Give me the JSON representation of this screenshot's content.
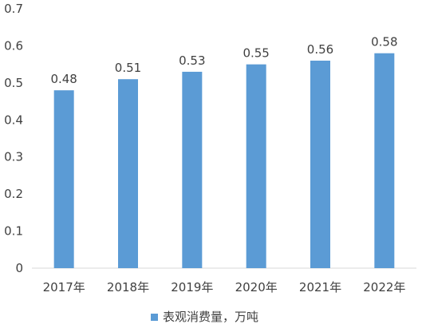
{
  "chart_data": {
    "type": "bar",
    "categories": [
      "2017年",
      "2018年",
      "2019年",
      "2020年",
      "2021年",
      "2022年"
    ],
    "series": [
      {
        "name": "表观消费量，万吨",
        "values": [
          0.48,
          0.51,
          0.53,
          0.55,
          0.56,
          0.58
        ]
      }
    ],
    "data_labels": [
      "0.48",
      "0.51",
      "0.53",
      "0.55",
      "0.56",
      "0.58"
    ],
    "y_ticks": [
      "0",
      "0.1",
      "0.2",
      "0.3",
      "0.4",
      "0.5",
      "0.6",
      "0.7"
    ],
    "ylim": [
      0,
      0.7
    ],
    "grid": false,
    "legend_position": "bottom",
    "bar_color": "#5b9bd5",
    "title": "",
    "xlabel": "",
    "ylabel": ""
  }
}
